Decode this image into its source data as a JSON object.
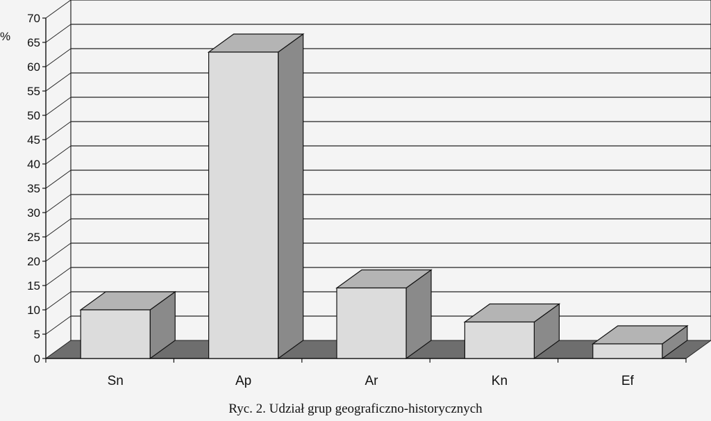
{
  "caption": "Ryc. 2. Udział grup geograficzno-historycznych",
  "chart_data": {
    "type": "bar",
    "style": "3d",
    "categories": [
      "Sn",
      "Ap",
      "Ar",
      "Kn",
      "Ef"
    ],
    "values": [
      10,
      63,
      14.5,
      7.5,
      3
    ],
    "ylabel": "%",
    "ylim": [
      0,
      70
    ],
    "yticks": [
      0,
      5,
      10,
      15,
      20,
      25,
      30,
      35,
      40,
      45,
      50,
      55,
      60,
      65,
      70
    ],
    "grid": true,
    "legend": "none",
    "colors": {
      "bar_front": "#dcdcdc",
      "bar_side": "#8a8a8a",
      "bar_top": "#b4b4b4",
      "floor": "#6e6e6e",
      "gridline": "#222222"
    }
  }
}
